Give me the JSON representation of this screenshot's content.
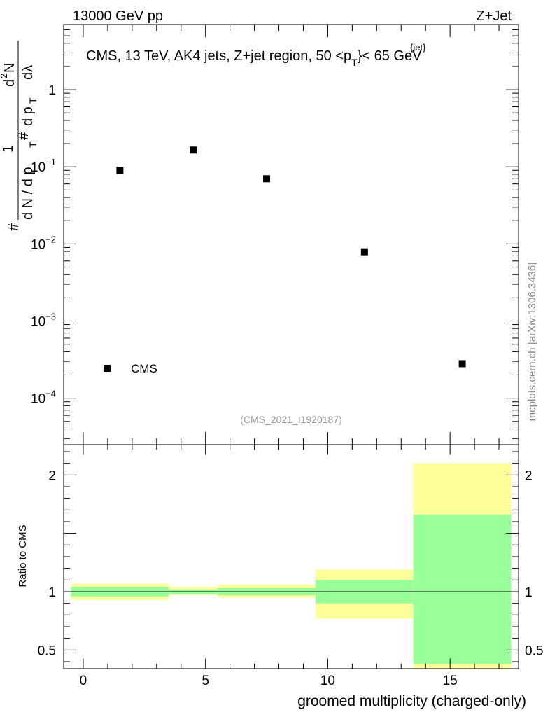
{
  "header": {
    "left": "13000 GeV pp",
    "right": "Z+Jet"
  },
  "watermark": "mcplots.cern.ch [arXiv:1306.3436]",
  "chart_data": [
    {
      "type": "scatter",
      "panel": "main",
      "title_main": "CMS, 13 TeV, AK4 jets, Z+jet region, 50 <p",
      "title_sub": "T",
      "title_sup": "{jet}",
      "title_tail": "}< 65 GeV",
      "ylabel_pieces": [
        "#",
        "1",
        "d N / d p",
        "T",
        "#",
        "d p",
        "T",
        "d",
        "2",
        "N",
        "dλ"
      ],
      "reference": "(CMS_2021_I1920187)",
      "legend": {
        "label": "CMS",
        "position": "lower-left"
      },
      "yscale": "log",
      "ylim": [
        2.5e-05,
        7
      ],
      "xlim": [
        -0.8,
        17.8
      ],
      "yticks": [
        {
          "value": 1,
          "base": "1",
          "exp": ""
        },
        {
          "value": 0.1,
          "base": "10",
          "exp": "−1"
        },
        {
          "value": 0.01,
          "base": "10",
          "exp": "−2"
        },
        {
          "value": 0.001,
          "base": "10",
          "exp": "−3"
        },
        {
          "value": 0.0001,
          "base": "10",
          "exp": "−4"
        }
      ],
      "points": [
        {
          "x": 1.5,
          "y": 0.09
        },
        {
          "x": 4.5,
          "y": 0.165
        },
        {
          "x": 7.5,
          "y": 0.07
        },
        {
          "x": 11.5,
          "y": 0.0079
        },
        {
          "x": 15.5,
          "y": 0.00028
        }
      ]
    },
    {
      "type": "area",
      "panel": "ratio",
      "ylabel": "Ratio to CMS",
      "xlabel": "groomed multiplicity (charged-only)",
      "ylim": [
        0.34,
        2.26
      ],
      "xlim": [
        -0.8,
        17.8
      ],
      "reference_line": 1,
      "xticks": [
        0,
        5,
        10,
        15
      ],
      "yticks": [
        0.5,
        1,
        2
      ],
      "bands": [
        {
          "xlo": -0.5,
          "xhi": 3.5,
          "yellow": [
            0.93,
            1.07
          ],
          "green": [
            0.96,
            1.04
          ]
        },
        {
          "xlo": 3.5,
          "xhi": 5.5,
          "yellow": [
            0.97,
            1.04
          ],
          "green": [
            0.98,
            1.02
          ]
        },
        {
          "xlo": 5.5,
          "xhi": 9.5,
          "yellow": [
            0.95,
            1.06
          ],
          "green": [
            0.97,
            1.03
          ]
        },
        {
          "xlo": 9.5,
          "xhi": 13.5,
          "yellow": [
            0.77,
            1.19
          ],
          "green": [
            0.9,
            1.1
          ]
        },
        {
          "xlo": 13.5,
          "xhi": 17.5,
          "yellow": [
            0.34,
            2.1
          ],
          "green": [
            0.38,
            1.66
          ]
        }
      ],
      "colors": {
        "yellow": "#ffff99",
        "green": "#99ff99"
      }
    }
  ]
}
